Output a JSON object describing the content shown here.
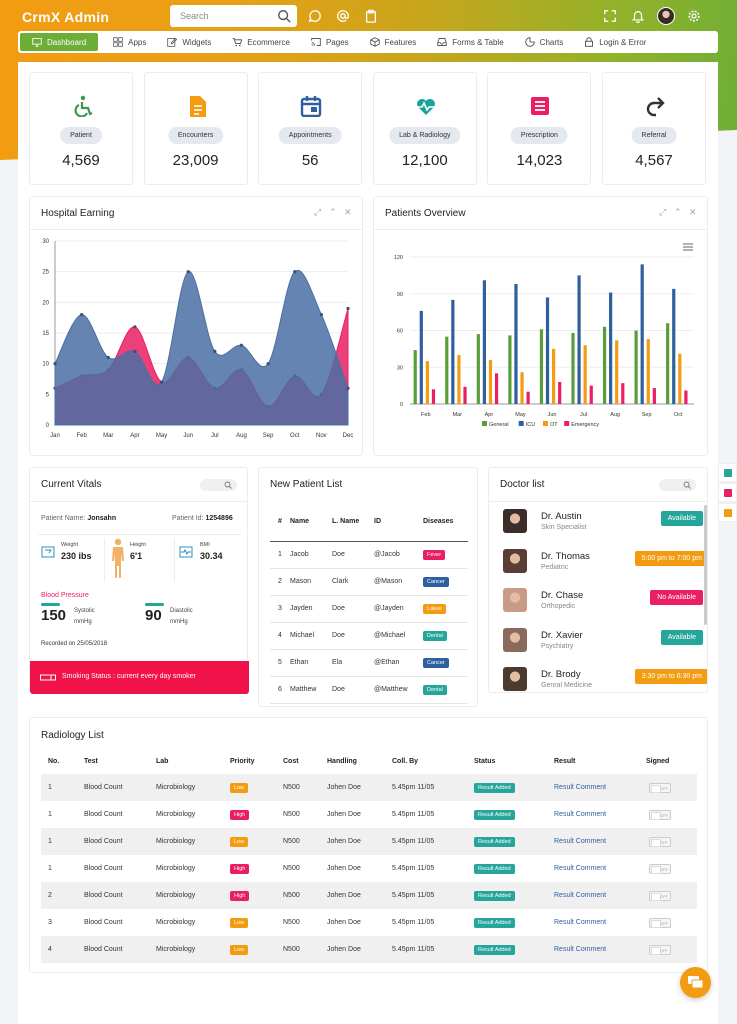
{
  "app": {
    "title": "CrmX Admin"
  },
  "search": {
    "placeholder": "Search"
  },
  "nav": [
    {
      "label": "Dashboard",
      "icon": "monitor-icon",
      "active": true
    },
    {
      "label": "Apps",
      "icon": "grid-icon"
    },
    {
      "label": "Widgets",
      "icon": "edit-icon"
    },
    {
      "label": "Ecommerce",
      "icon": "cart-icon"
    },
    {
      "label": "Pages",
      "icon": "cast-icon"
    },
    {
      "label": "Features",
      "icon": "box-icon"
    },
    {
      "label": "Forms & Table",
      "icon": "inbox-icon"
    },
    {
      "label": "Charts",
      "icon": "pie-chart-icon"
    },
    {
      "label": "Login & Error",
      "icon": "lock-icon"
    }
  ],
  "stats": [
    {
      "label": "Patient",
      "value": "4,569",
      "icon": "wheelchair-icon",
      "color": "#3a9a52"
    },
    {
      "label": "Encounters",
      "value": "23,009",
      "icon": "document-icon",
      "color": "#f39c12"
    },
    {
      "label": "Appointments",
      "value": "56",
      "icon": "calendar-icon",
      "color": "#2f5f9e"
    },
    {
      "label": "Lab & Radiology",
      "value": "12,100",
      "icon": "heartbeat-icon",
      "color": "#1aa39b"
    },
    {
      "label": "Prescription",
      "value": "14,023",
      "icon": "list-icon",
      "color": "#e91e63"
    },
    {
      "label": "Referral",
      "value": "4,567",
      "icon": "redo-icon",
      "color": "#333"
    }
  ],
  "earning": {
    "title": "Hospital Earning"
  },
  "overview": {
    "title": "Patients Overview"
  },
  "chart_data": [
    {
      "type": "area",
      "title": "Hospital Earning",
      "categories": [
        "Jan",
        "Feb",
        "Mar",
        "Apr",
        "May",
        "Jun",
        "Jul",
        "Aug",
        "Sep",
        "Oct",
        "Nov",
        "Dec"
      ],
      "ylim": [
        0,
        30
      ],
      "yticks": [
        0,
        5,
        10,
        15,
        20,
        25,
        30
      ],
      "series": [
        {
          "color": "#e91e63",
          "values": [
            6,
            8,
            9,
            16,
            7,
            11,
            6,
            9,
            3,
            8,
            5,
            19
          ]
        },
        {
          "color": "#4a6fa5",
          "values": [
            10,
            18,
            11,
            12,
            7,
            25,
            12,
            13,
            10,
            25,
            18,
            6
          ]
        }
      ]
    },
    {
      "type": "bar",
      "title": "Patients Overview",
      "categories": [
        "Feb",
        "Mar",
        "Apr",
        "May",
        "Jun",
        "Jul",
        "Aug",
        "Sep",
        "Oct"
      ],
      "ylim": [
        0,
        120
      ],
      "yticks": [
        0,
        30,
        60,
        90,
        120
      ],
      "series": [
        {
          "name": "General",
          "color": "#5a9e3a",
          "values": [
            44,
            55,
            57,
            56,
            61,
            58,
            63,
            60,
            66
          ]
        },
        {
          "name": "ICU",
          "color": "#2f5f9e",
          "values": [
            76,
            85,
            101,
            98,
            87,
            105,
            91,
            114,
            94
          ]
        },
        {
          "name": "OT",
          "color": "#f39c12",
          "values": [
            35,
            40,
            36,
            26,
            45,
            48,
            52,
            53,
            41
          ]
        },
        {
          "name": "Emergency",
          "color": "#e91e63",
          "values": [
            12,
            14,
            25,
            10,
            18,
            15,
            17,
            13,
            11
          ]
        }
      ]
    }
  ],
  "vitals": {
    "title": "Current Vitals",
    "name_label": "Patient Name:",
    "name": "Jonsahn",
    "id_label": "Patient Id:",
    "id": "1254896",
    "weight_label": "Weight",
    "weight": "230 ibs",
    "height_label": "Height",
    "height": "6'1",
    "bmi_label": "BMI",
    "bmi": "30.34",
    "bp_label": "Blood Pressure",
    "systolic": "150",
    "systolic_label": "Systolic",
    "diastolic": "90",
    "diastolic_label": "Diastolic",
    "unit": "mmHg",
    "recorded": "Recorded on 25/05/2018",
    "smoking": "Smoking Status : current every day smoker"
  },
  "patients": {
    "title": "New Patient List",
    "headers": [
      "#",
      "Name",
      "L. Name",
      "ID",
      "Diseases"
    ],
    "rows": [
      {
        "n": "1",
        "first": "Jacob",
        "last": "Doe",
        "id": "@Jacob",
        "disease": "Fever",
        "color": "#e91e63"
      },
      {
        "n": "2",
        "first": "Mason",
        "last": "Clark",
        "id": "@Mason",
        "disease": "Cancer",
        "color": "#2f5f9e"
      },
      {
        "n": "3",
        "first": "Jayden",
        "last": "Doe",
        "id": "@Jayden",
        "disease": "Lakve",
        "color": "#f39c12"
      },
      {
        "n": "4",
        "first": "Michael",
        "last": "Doe",
        "id": "@Michael",
        "disease": "Dental",
        "color": "#26a69a"
      },
      {
        "n": "5",
        "first": "Ethan",
        "last": "Ela",
        "id": "@Ethan",
        "disease": "Cancer",
        "color": "#2f5f9e"
      },
      {
        "n": "6",
        "first": "Matthew",
        "last": "Doe",
        "id": "@Matthew",
        "disease": "Dental",
        "color": "#26a69a"
      }
    ]
  },
  "doctors": {
    "title": "Doctor list",
    "items": [
      {
        "name": "Dr. Austin",
        "spec": "Skin Specialist",
        "status": "Available",
        "color": "#26a69a"
      },
      {
        "name": "Dr. Thomas",
        "spec": "Pediatric",
        "status": "5:00 pm to 7:00 pm",
        "color": "#f39c12"
      },
      {
        "name": "Dr. Chase",
        "spec": "Orthopedic",
        "status": "No Available",
        "color": "#e91e63"
      },
      {
        "name": "Dr. Xavier",
        "spec": "Psychiatry",
        "status": "Available",
        "color": "#26a69a"
      },
      {
        "name": "Dr. Brody",
        "spec": "Genral Medicine",
        "status": "3:30 pm to 6:30 pm",
        "color": "#f39c12"
      }
    ]
  },
  "radiology": {
    "title": "Radiology List",
    "headers": [
      "No.",
      "Test",
      "Lab",
      "Priority",
      "Cost",
      "Handling",
      "Coll. By",
      "Status",
      "Result",
      "Signed"
    ],
    "rows": [
      {
        "no": "1",
        "test": "Blood Count",
        "lab": "Microbiology",
        "priority": "Low",
        "pcolor": "#f39c12",
        "cost": "N500",
        "handling": "Johen Doe",
        "coll": "5.45pm 11/05",
        "status": "Result Added",
        "result": "Result Comment",
        "toggle": "OFF"
      },
      {
        "no": "1",
        "test": "Blood Count",
        "lab": "Microbiology",
        "priority": "High",
        "pcolor": "#e91e63",
        "cost": "N500",
        "handling": "Johen Doe",
        "coll": "5.45pm 11/05",
        "status": "Result Added",
        "result": "Result Comment",
        "toggle": "OFF"
      },
      {
        "no": "1",
        "test": "Blood Count",
        "lab": "Microbiology",
        "priority": "Low",
        "pcolor": "#f39c12",
        "cost": "N500",
        "handling": "Johen Doe",
        "coll": "5.45pm 11/05",
        "status": "Result Added",
        "result": "Result Comment",
        "toggle": "OFF"
      },
      {
        "no": "1",
        "test": "Blood Count",
        "lab": "Microbiology",
        "priority": "High",
        "pcolor": "#e91e63",
        "cost": "N500",
        "handling": "Johen Doe",
        "coll": "5.45pm 11/05",
        "status": "Result Added",
        "result": "Result Comment",
        "toggle": "OFF"
      },
      {
        "no": "2",
        "test": "Blood Count",
        "lab": "Microbiology",
        "priority": "High",
        "pcolor": "#e91e63",
        "cost": "N500",
        "handling": "Johen Doe",
        "coll": "5.45pm 11/05",
        "status": "Result Added",
        "result": "Result Comment",
        "toggle": "OFF"
      },
      {
        "no": "3",
        "test": "Blood Count",
        "lab": "Microbiology",
        "priority": "Low",
        "pcolor": "#f39c12",
        "cost": "N500",
        "handling": "Johen Doe",
        "coll": "5.45pm 11/05",
        "status": "Result Added",
        "result": "Result Comment",
        "toggle": "OFF"
      },
      {
        "no": "4",
        "test": "Blood Count",
        "lab": "Microbiology",
        "priority": "Low",
        "pcolor": "#f39c12",
        "cost": "N500",
        "handling": "Johen Doe",
        "coll": "5.45pm 11/05",
        "status": "Result Added",
        "result": "Result Comment",
        "toggle": "OFF"
      }
    ]
  },
  "colors": {
    "accent": "#6cae36",
    "orange": "#f39c12",
    "teal": "#26a69a",
    "pink": "#e91e63",
    "navy": "#2f5f9e"
  }
}
